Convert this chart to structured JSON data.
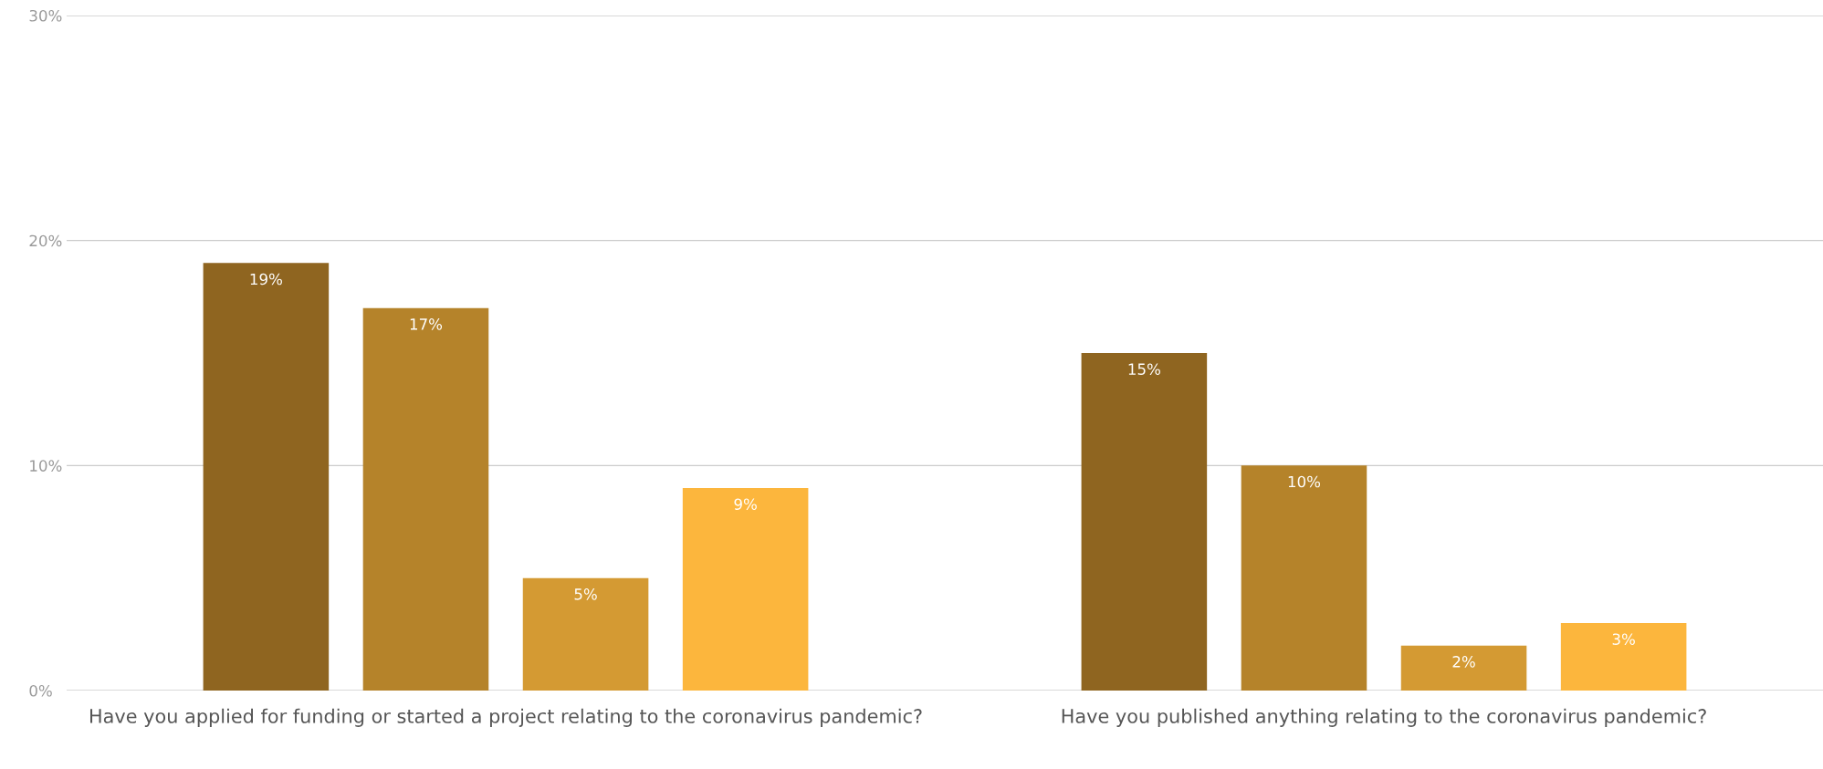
{
  "chart_data": {
    "type": "bar",
    "categories": [
      "Have you applied for funding or started a project relating to the coronavirus pandemic?",
      "Have you published anything relating to the coronavirus pandemic?"
    ],
    "series": [
      {
        "color": "#8f6520",
        "values": [
          19,
          15
        ],
        "value_labels": [
          "19%",
          "15%"
        ]
      },
      {
        "color": "#b5832a",
        "values": [
          17,
          10
        ],
        "value_labels": [
          "17%",
          "10%"
        ]
      },
      {
        "color": "#d49a33",
        "values": [
          5,
          2
        ],
        "value_labels": [
          "5%",
          "2%"
        ]
      },
      {
        "color": "#fcb63d",
        "values": [
          9,
          3
        ],
        "value_labels": [
          "9%",
          "3%"
        ]
      }
    ],
    "ylim": [
      0,
      30
    ],
    "yticks": [
      {
        "value": 0,
        "label": "0%"
      },
      {
        "value": 10,
        "label": "10%"
      },
      {
        "value": 20,
        "label": "20%"
      },
      {
        "value": 30,
        "label": "30%"
      }
    ],
    "grid": "y"
  }
}
